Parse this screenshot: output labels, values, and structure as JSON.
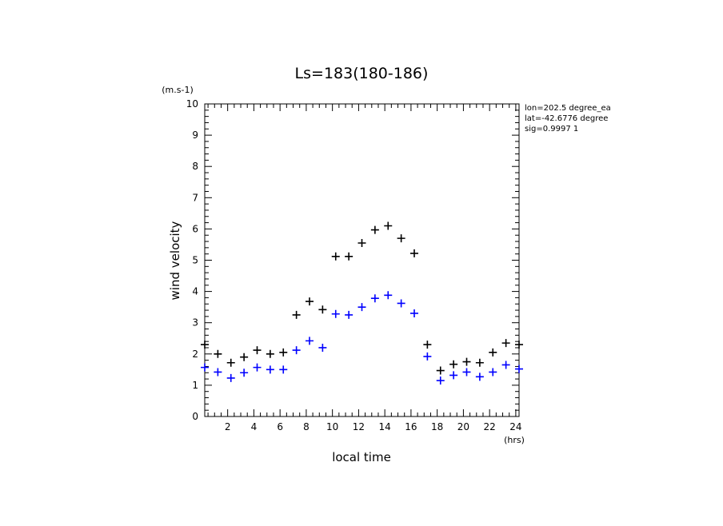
{
  "chart_data": {
    "type": "scatter",
    "title": "Ls=183(180-186)",
    "xlabel": "local time",
    "ylabel": "wind velocity",
    "x_unit": "(hrs)",
    "y_unit": "(m.s-1)",
    "xlim": [
      0.25,
      24.25
    ],
    "ylim": [
      0,
      10
    ],
    "x_ticks": [
      2,
      4,
      6,
      8,
      10,
      12,
      14,
      16,
      18,
      20,
      22,
      24
    ],
    "y_ticks": [
      0,
      1,
      2,
      3,
      4,
      5,
      6,
      7,
      8,
      9,
      10
    ],
    "grid": false,
    "annotations": [
      "lon=202.5 degree_ea",
      "lat=-42.6776 degree",
      "sig=0.9997 1"
    ],
    "x": [
      0.25,
      1.25,
      2.25,
      3.25,
      4.25,
      5.25,
      6.25,
      7.25,
      8.25,
      9.25,
      10.25,
      11.25,
      12.25,
      13.25,
      14.25,
      15.25,
      16.25,
      17.25,
      18.25,
      19.25,
      20.25,
      21.25,
      22.25,
      23.25,
      24.25
    ],
    "series": [
      {
        "color": "#000000",
        "values": [
          2.3,
          2.0,
          1.72,
          1.9,
          2.12,
          2.0,
          2.05,
          3.25,
          3.68,
          3.42,
          5.12,
          5.12,
          5.55,
          5.97,
          6.1,
          5.7,
          5.22,
          2.3,
          1.47,
          1.67,
          1.75,
          1.72,
          2.05,
          2.35,
          2.3
        ]
      },
      {
        "color": "#0000ff",
        "values": [
          1.57,
          1.42,
          1.23,
          1.4,
          1.57,
          1.5,
          1.5,
          2.12,
          2.42,
          2.2,
          3.28,
          3.25,
          3.5,
          3.78,
          3.88,
          3.62,
          3.3,
          1.92,
          1.15,
          1.32,
          1.42,
          1.27,
          1.42,
          1.65,
          1.52
        ]
      }
    ]
  }
}
